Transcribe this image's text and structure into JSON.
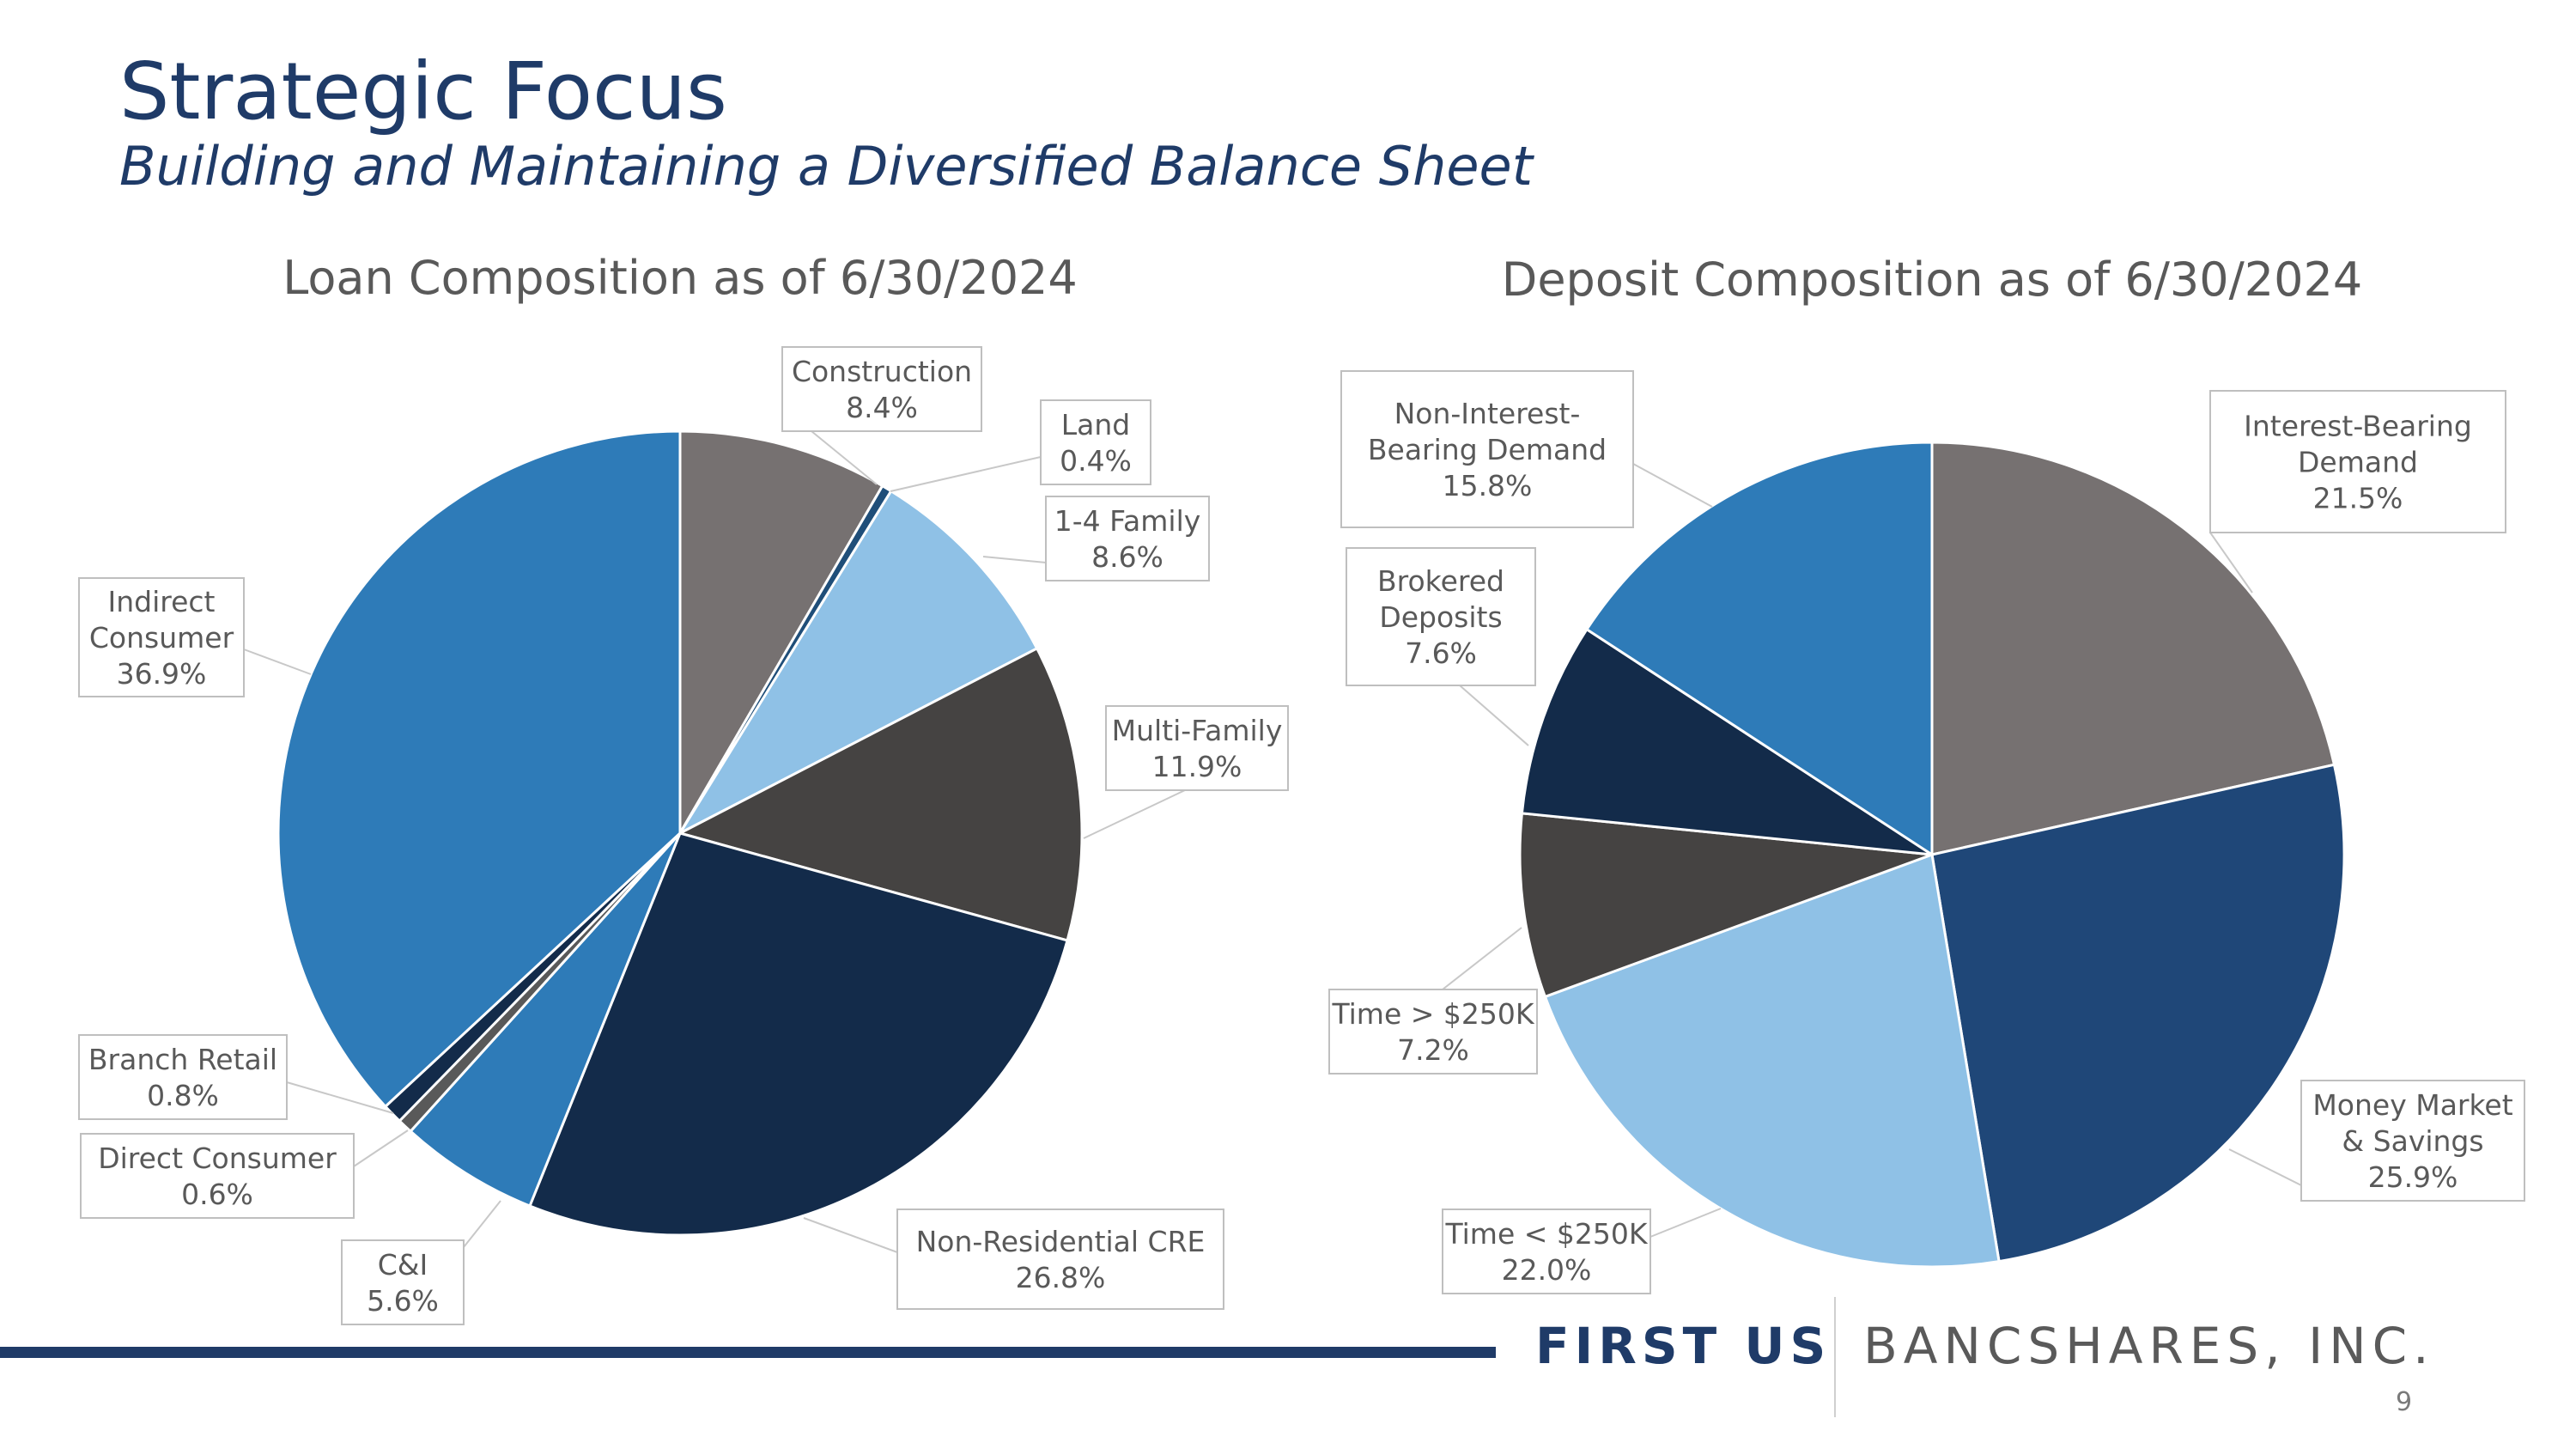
{
  "header": {
    "title": "Strategic Focus",
    "subtitle": "Building and Maintaining a Diversified Balance Sheet"
  },
  "chart_data": [
    {
      "type": "pie",
      "title": "Loan Composition as of 6/30/2024",
      "start_angle": 0,
      "direction": "clockwise",
      "slices": [
        {
          "name": "Construction",
          "value": 8.4,
          "label": "8.4%",
          "color": "#767171"
        },
        {
          "name": "Land",
          "value": 0.4,
          "label": "0.4%",
          "color": "#1f4e79"
        },
        {
          "name": "1-4 Family",
          "value": 8.6,
          "label": "8.6%",
          "color": "#8fc1e6"
        },
        {
          "name": "Multi-Family",
          "value": 11.9,
          "label": "11.9%",
          "color": "#454342"
        },
        {
          "name": "Non-Residential CRE",
          "value": 26.8,
          "label": "26.8%",
          "color": "#132b4a"
        },
        {
          "name": "C&I",
          "value": 5.6,
          "label": "5.6%",
          "color": "#2e7bb8"
        },
        {
          "name": "Direct Consumer",
          "value": 0.6,
          "label": "0.6%",
          "color": "#595959"
        },
        {
          "name": "Branch Retail",
          "value": 0.8,
          "label": "0.8%",
          "color": "#132b4a"
        },
        {
          "name": "Indirect Consumer",
          "value": 36.9,
          "label": "36.9%",
          "color": "#2e7bb8"
        }
      ]
    },
    {
      "type": "pie",
      "title": "Deposit Composition as of 6/30/2024",
      "start_angle": 0,
      "direction": "clockwise",
      "slices": [
        {
          "name": "Interest-Bearing Demand",
          "value": 21.5,
          "label": "21.5%",
          "color": "#767171"
        },
        {
          "name": "Money Market & Savings",
          "value": 25.9,
          "label": "25.9%",
          "color": "#1f4778"
        },
        {
          "name": "Time < $250K",
          "value": 22.0,
          "label": "22.0%",
          "color": "#8fc1e6"
        },
        {
          "name": "Time > $250K",
          "value": 7.2,
          "label": "7.2%",
          "color": "#454342"
        },
        {
          "name": "Brokered Deposits",
          "value": 7.6,
          "label": "7.6%",
          "color": "#132b4a"
        },
        {
          "name": "Non-Interest-Bearing Demand",
          "value": 15.8,
          "label": "15.8%",
          "color": "#2e7bb8"
        }
      ]
    }
  ],
  "footer": {
    "brand_left": "FIRST US",
    "brand_right": "BANCSHARES, INC.",
    "page_number": "9"
  }
}
